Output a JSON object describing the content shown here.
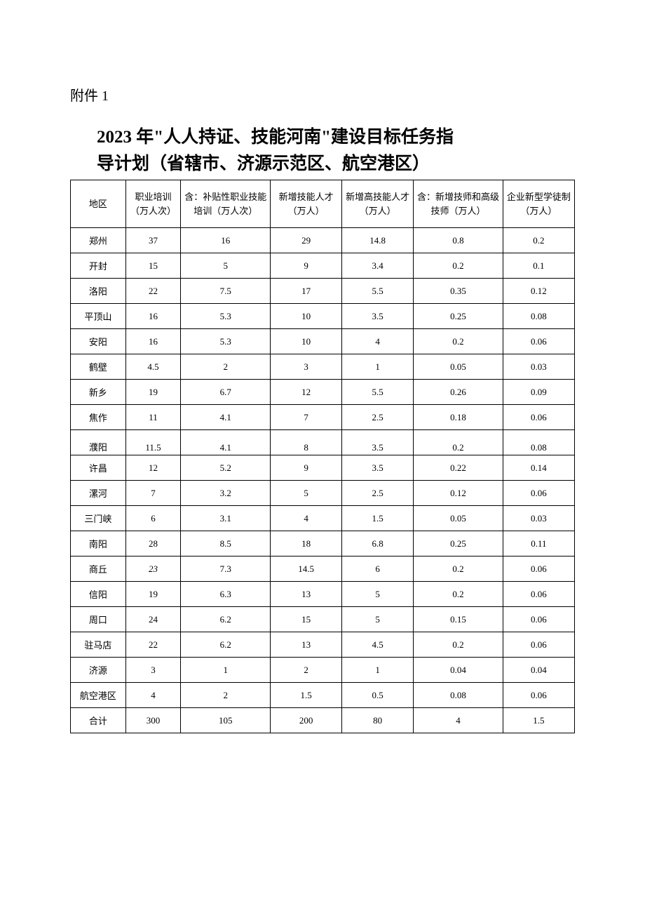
{
  "attachment_label": "附件 1",
  "title_line1": "2023 年\"人人持证、技能河南\"建设目标任务指",
  "title_line2": "导计划（省辖市、济源示范区、航空港区）",
  "columns": [
    "地区",
    "职业培训（万人次）",
    "含：补贴性职业技能培训（万人次）",
    "新增技能人才（万人）",
    "新增高技能人才（万人）",
    "含：新增技师和高级技师（万人）",
    "企业新型学徒制（万人）"
  ],
  "rows": [
    {
      "region": "郑州",
      "c1": "37",
      "c2": "16",
      "c3": "29",
      "c4": "14.8",
      "c5": "0.8",
      "c6": "0.2"
    },
    {
      "region": "开封",
      "c1": "15",
      "c2": "5",
      "c3": "9",
      "c4": "3.4",
      "c5": "0.2",
      "c6": "0.1"
    },
    {
      "region": "洛阳",
      "c1": "22",
      "c2": "7.5",
      "c3": "17",
      "c4": "5.5",
      "c5": "0.35",
      "c6": "0.12"
    },
    {
      "region": "平顶山",
      "c1": "16",
      "c2": "5.3",
      "c3": "10",
      "c4": "3.5",
      "c5": "0.25",
      "c6": "0.08"
    },
    {
      "region": "安阳",
      "c1": "16",
      "c2": "5.3",
      "c3": "10",
      "c4": "4",
      "c5": "0.2",
      "c6": "0.06"
    },
    {
      "region": "鹤壁",
      "c1": "4.5",
      "c2": "2",
      "c3": "3",
      "c4": "1",
      "c5": "0.05",
      "c6": "0.03"
    },
    {
      "region": "新乡",
      "c1": "19",
      "c2": "6.7",
      "c3": "12",
      "c4": "5.5",
      "c5": "0.26",
      "c6": "0.09"
    },
    {
      "region": "焦作",
      "c1": "11",
      "c2": "4.1",
      "c3": "7",
      "c4": "2.5",
      "c5": "0.18",
      "c6": "0.06"
    },
    {
      "region": "濮阳",
      "c1": "11.5",
      "c2": "4.1",
      "c3": "8",
      "c4": "3.5",
      "c5": "0.2",
      "c6": "0.08",
      "special": "puyang"
    },
    {
      "region": "许昌",
      "c1": "12",
      "c2": "5.2",
      "c3": "9",
      "c4": "3.5",
      "c5": "0.22",
      "c6": "0.14"
    },
    {
      "region": "漯河",
      "c1": "7",
      "c2": "3.2",
      "c3": "5",
      "c4": "2.5",
      "c5": "0.12",
      "c6": "0.06"
    },
    {
      "region": "三门峡",
      "c1": "6",
      "c2": "3.1",
      "c3": "4",
      "c4": "1.5",
      "c5": "0.05",
      "c6": "0.03"
    },
    {
      "region": "南阳",
      "c1": "28",
      "c2": "8.5",
      "c3": "18",
      "c4": "6.8",
      "c5": "0.25",
      "c6": "0.11"
    },
    {
      "region": "商丘",
      "c1": "23",
      "c1_italic": true,
      "c2": "7.3",
      "c3": "14.5",
      "c4": "6",
      "c5": "0.2",
      "c6": "0.06"
    },
    {
      "region": "信阳",
      "c1": "19",
      "c2": "6.3",
      "c3": "13",
      "c4": "5",
      "c5": "0.2",
      "c6": "0.06"
    },
    {
      "region": "周口",
      "c1": "24",
      "c2": "6.2",
      "c3": "15",
      "c4": "5",
      "c5": "0.15",
      "c6": "0.06"
    },
    {
      "region": "驻马店",
      "c1": "22",
      "c2": "6.2",
      "c3": "13",
      "c4": "4.5",
      "c5": "0.2",
      "c6": "0.06"
    },
    {
      "region": "济源",
      "c1": "3",
      "c2": "1",
      "c3": "2",
      "c4": "1",
      "c5": "0.04",
      "c6": "0.04"
    },
    {
      "region": "航空港区",
      "c1": "4",
      "c2": "2",
      "c3": "1.5",
      "c4": "0.5",
      "c5": "0.08",
      "c6": "0.06"
    },
    {
      "region": "合计",
      "c1": "300",
      "c2": "105",
      "c3": "200",
      "c4": "80",
      "c5": "4",
      "c6": "1.5"
    }
  ],
  "styling": {
    "background_color": "#ffffff",
    "text_color": "#000000",
    "border_color": "#000000",
    "title_fontsize": 25,
    "body_fontsize": 13,
    "attachment_fontsize": 20
  }
}
